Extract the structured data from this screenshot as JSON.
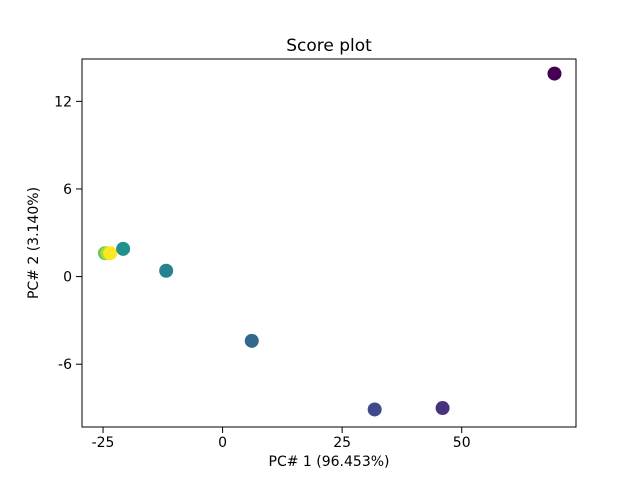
{
  "figure": {
    "background": "#ffffff",
    "spine_color": "#000000",
    "text_color": "#000000"
  },
  "chart_data": {
    "type": "scatter",
    "title": "Score plot",
    "xlabel": "PC# 1 (96.453%)",
    "ylabel": "PC# 2 (3.140%)",
    "xlim": [
      -29.4,
      73.9
    ],
    "ylim": [
      -10.3,
      14.9
    ],
    "x_ticks": [
      -25,
      0,
      25,
      50
    ],
    "y_ticks": [
      -6,
      0,
      6,
      12
    ],
    "grid": false,
    "legend": "none",
    "marker_radius_px": 7,
    "colormap": "viridis",
    "points": [
      {
        "x": 69.4,
        "y": 13.9,
        "color": "#440154"
      },
      {
        "x": 46.0,
        "y": -9.0,
        "color": "#46327e"
      },
      {
        "x": 31.8,
        "y": -9.1,
        "color": "#3e4a89"
      },
      {
        "x": 6.1,
        "y": -4.4,
        "color": "#31688e"
      },
      {
        "x": -11.8,
        "y": 0.4,
        "color": "#26828e"
      },
      {
        "x": -24.6,
        "y": 1.6,
        "color": "#5ec962"
      },
      {
        "x": -24.1,
        "y": 1.6,
        "color": "#aadc32"
      },
      {
        "x": -23.5,
        "y": 1.6,
        "color": "#fde725"
      },
      {
        "x": -20.8,
        "y": 1.9,
        "color": "#21918c"
      }
    ]
  }
}
